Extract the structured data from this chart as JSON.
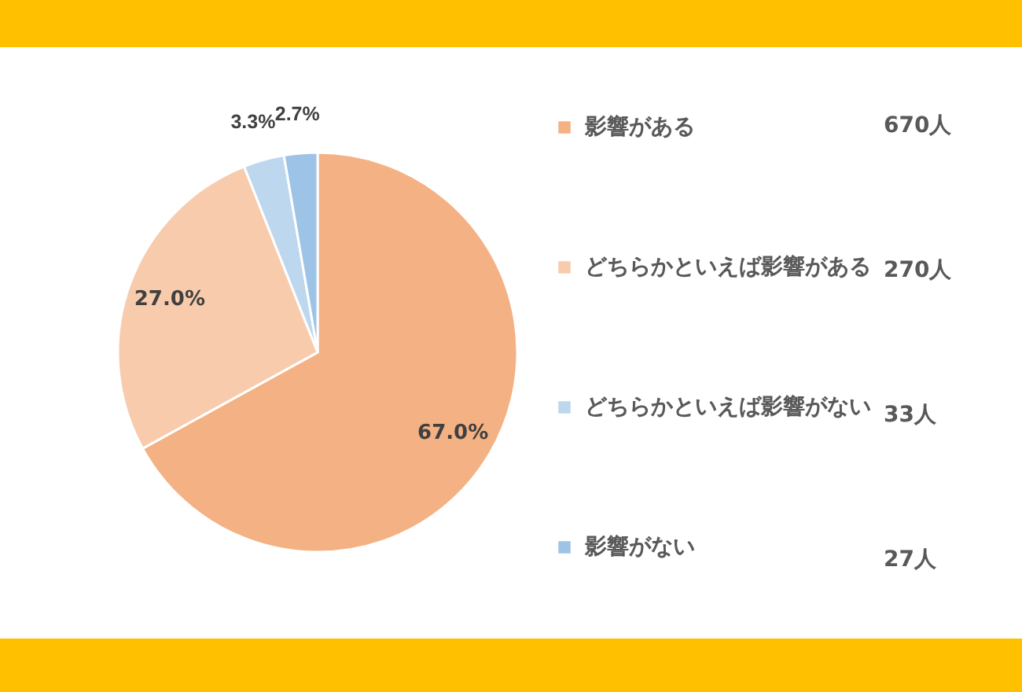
{
  "chart_data": {
    "type": "pie",
    "categories": [
      "影響がある",
      "どちらかといえば影響がある",
      "どちらかといえば影響がない",
      "影響がない"
    ],
    "values": [
      67.0,
      27.0,
      3.3,
      2.7
    ],
    "colors": [
      "#f4b183",
      "#f8cbad",
      "#bdd7ee",
      "#9dc3e6"
    ],
    "value_labels": [
      "67.0%",
      "27.0%",
      "3.3%",
      "2.7%"
    ],
    "annotations": [
      "670人",
      "270人",
      "33人",
      "27人"
    ],
    "legend": "right"
  }
}
